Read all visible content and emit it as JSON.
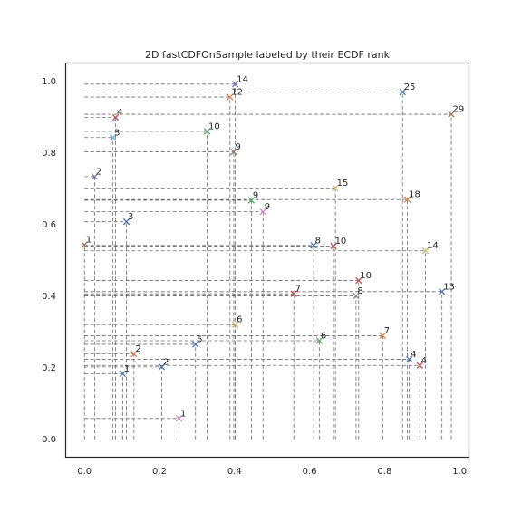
{
  "chart_data": {
    "type": "scatter",
    "title": "2D fastCDFOnSample labeled by their ECDF rank",
    "xlabel": "",
    "ylabel": "",
    "xlim": [
      -0.05,
      1.025
    ],
    "ylim": [
      -0.05,
      1.05
    ],
    "xticks": [
      0.0,
      0.2,
      0.4,
      0.6,
      0.8,
      1.0
    ],
    "yticks": [
      0.0,
      0.2,
      0.4,
      0.6,
      0.8,
      1.0
    ],
    "grid": false,
    "legend": "none",
    "marker": "x",
    "palette": [
      "#4c72b0",
      "#dd8452",
      "#55a868",
      "#c44e52",
      "#8172b3",
      "#937860",
      "#da8bc3",
      "#8c8c8c",
      "#ccb974",
      "#64b5cd"
    ],
    "points": [
      {
        "x": 0.402,
        "y": 0.991,
        "label": "14",
        "color": "#8172b3"
      },
      {
        "x": 0.388,
        "y": 0.955,
        "label": "12",
        "color": "#dd8452"
      },
      {
        "x": 0.848,
        "y": 0.969,
        "label": "25",
        "color": "#4c72b0"
      },
      {
        "x": 0.978,
        "y": 0.907,
        "label": "29",
        "color": "#937860"
      },
      {
        "x": 0.083,
        "y": 0.898,
        "label": "4",
        "color": "#c44e52"
      },
      {
        "x": 0.327,
        "y": 0.859,
        "label": "10",
        "color": "#55a868"
      },
      {
        "x": 0.076,
        "y": 0.842,
        "label": "3",
        "color": "#64b5cd"
      },
      {
        "x": 0.398,
        "y": 0.802,
        "label": "9",
        "color": "#937860"
      },
      {
        "x": 0.027,
        "y": 0.733,
        "label": "2",
        "color": "#8172b3"
      },
      {
        "x": 0.669,
        "y": 0.701,
        "label": "15",
        "color": "#ccb974"
      },
      {
        "x": 0.861,
        "y": 0.669,
        "label": "18",
        "color": "#dd8452"
      },
      {
        "x": 0.445,
        "y": 0.667,
        "label": "9",
        "color": "#55a868"
      },
      {
        "x": 0.476,
        "y": 0.635,
        "label": "9",
        "color": "#da8bc3"
      },
      {
        "x": 0.112,
        "y": 0.607,
        "label": "3",
        "color": "#4c72b0"
      },
      {
        "x": 0.0,
        "y": 0.543,
        "label": "1",
        "color": "#937860"
      },
      {
        "x": 0.611,
        "y": 0.541,
        "label": "8",
        "color": "#4c72b0"
      },
      {
        "x": 0.664,
        "y": 0.539,
        "label": "10",
        "color": "#c44e52"
      },
      {
        "x": 0.909,
        "y": 0.526,
        "label": "14",
        "color": "#ccb974"
      },
      {
        "x": 0.731,
        "y": 0.443,
        "label": "10",
        "color": "#c44e52"
      },
      {
        "x": 0.953,
        "y": 0.412,
        "label": "13",
        "color": "#4c72b0"
      },
      {
        "x": 0.558,
        "y": 0.406,
        "label": "7",
        "color": "#c44e52"
      },
      {
        "x": 0.724,
        "y": 0.4,
        "label": "8",
        "color": "#8c8c8c"
      },
      {
        "x": 0.402,
        "y": 0.32,
        "label": "6",
        "color": "#ccb974"
      },
      {
        "x": 0.795,
        "y": 0.289,
        "label": "7",
        "color": "#dd8452"
      },
      {
        "x": 0.626,
        "y": 0.275,
        "label": "6",
        "color": "#55a868"
      },
      {
        "x": 0.296,
        "y": 0.265,
        "label": "5",
        "color": "#4c72b0"
      },
      {
        "x": 0.132,
        "y": 0.238,
        "label": "2",
        "color": "#dd8452"
      },
      {
        "x": 0.866,
        "y": 0.223,
        "label": "4",
        "color": "#4c72b0"
      },
      {
        "x": 0.894,
        "y": 0.206,
        "label": "4",
        "color": "#c44e52"
      },
      {
        "x": 0.206,
        "y": 0.202,
        "label": "2",
        "color": "#4c72b0"
      },
      {
        "x": 0.102,
        "y": 0.183,
        "label": "1",
        "color": "#4c72b0"
      },
      {
        "x": 0.252,
        "y": 0.058,
        "label": "1",
        "color": "#da8bc3"
      }
    ]
  }
}
